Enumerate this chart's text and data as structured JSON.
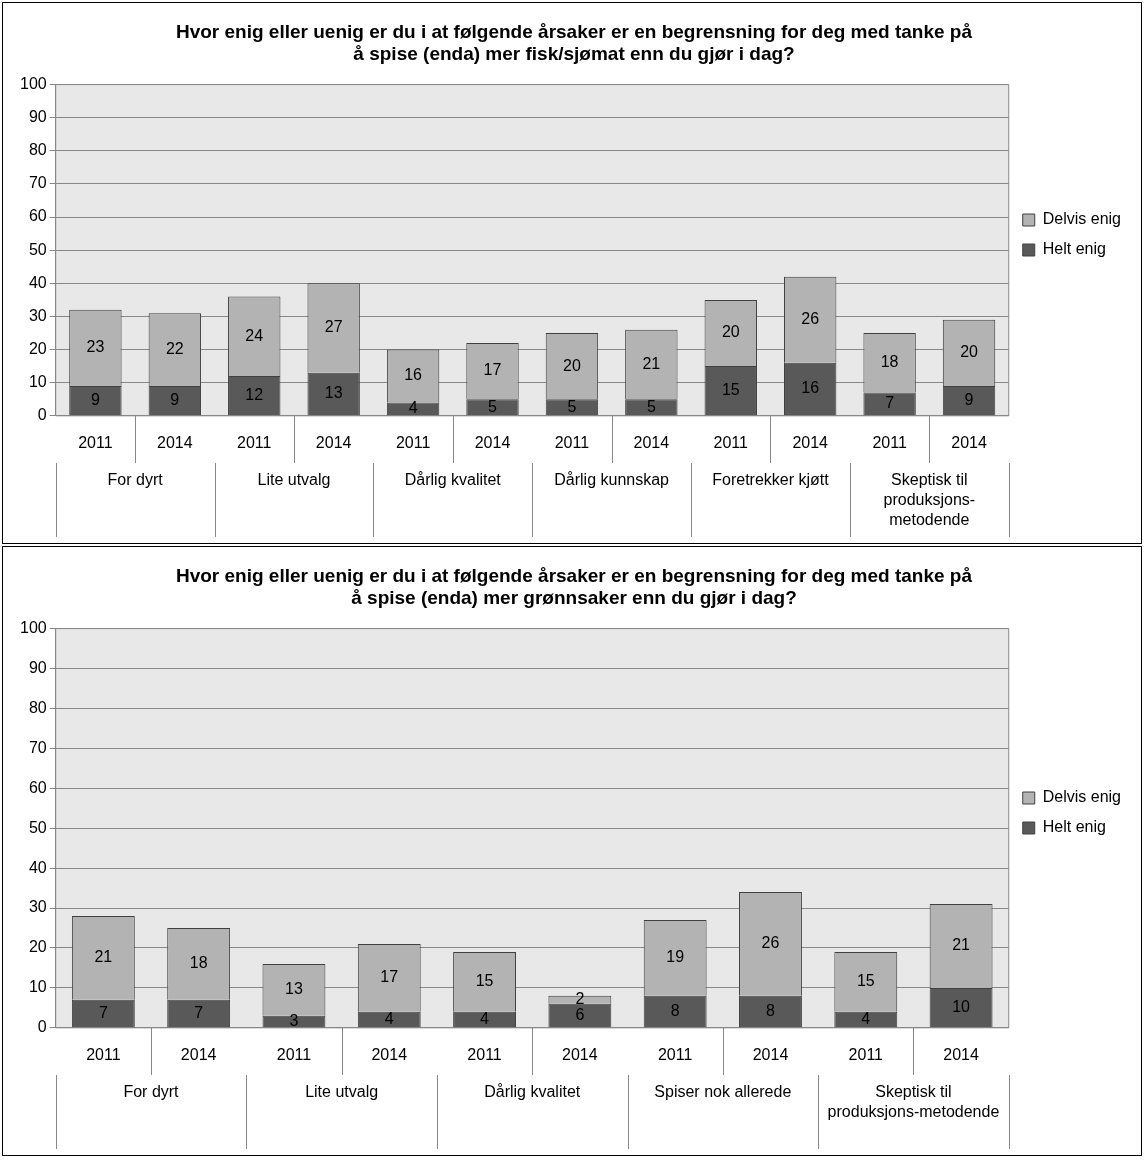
{
  "chart_data": [
    {
      "type": "bar",
      "title": "Hvor enig eller uenig er du i at følgende årsaker er en begrensning for deg med tanke på å spise (enda) mer fisk/sjømat enn du gjør i dag?",
      "categories": [
        "2011",
        "2014",
        "2011",
        "2014",
        "2011",
        "2014",
        "2011",
        "2014",
        "2011",
        "2014",
        "2011",
        "2014"
      ],
      "annotations": [
        "For dyrt",
        "Lite utvalg",
        "Dårlig kvalitet",
        "Dårlig kunnskap",
        "Foretrekker kjøtt",
        "Skeptisk til produksjons-metodende"
      ],
      "stacked": true,
      "series": [
        {
          "name": "Helt enig",
          "color": "#595959",
          "values": [
            9,
            9,
            12,
            13,
            4,
            5,
            5,
            5,
            15,
            16,
            7,
            9
          ]
        },
        {
          "name": "Delvis enig",
          "color": "#b3b3b3",
          "values": [
            23,
            22,
            24,
            27,
            16,
            17,
            20,
            21,
            20,
            26,
            18,
            20
          ]
        }
      ],
      "ylim": [
        0,
        100
      ],
      "yticks": [
        0,
        10,
        20,
        30,
        40,
        50,
        60,
        70,
        80,
        90,
        100
      ],
      "grid": "y",
      "legend": "right",
      "data_labels": true
    },
    {
      "type": "bar",
      "title": "Hvor enig eller uenig er du i at følgende årsaker er en begrensning for deg med tanke på å spise (enda) mer grønnsaker enn du gjør i dag?",
      "categories": [
        "2011",
        "2014",
        "2011",
        "2014",
        "2011",
        "2014",
        "2011",
        "2014",
        "2011",
        "2014"
      ],
      "annotations": [
        "For dyrt",
        "Lite utvalg",
        "Dårlig kvalitet",
        "Spiser nok allerede",
        "Skeptisk til produksjons-metodende"
      ],
      "stacked": true,
      "series": [
        {
          "name": "Helt enig",
          "color": "#595959",
          "values": [
            7,
            7,
            3,
            4,
            4,
            6,
            8,
            8,
            4,
            10
          ]
        },
        {
          "name": "Delvis enig",
          "color": "#b3b3b3",
          "values": [
            21,
            18,
            13,
            17,
            15,
            2,
            19,
            26,
            15,
            21
          ]
        }
      ],
      "ylim": [
        0,
        100
      ],
      "yticks": [
        0,
        10,
        20,
        30,
        40,
        50,
        60,
        70,
        80,
        90,
        100
      ],
      "grid": "y",
      "legend": "right",
      "data_labels": true
    }
  ]
}
